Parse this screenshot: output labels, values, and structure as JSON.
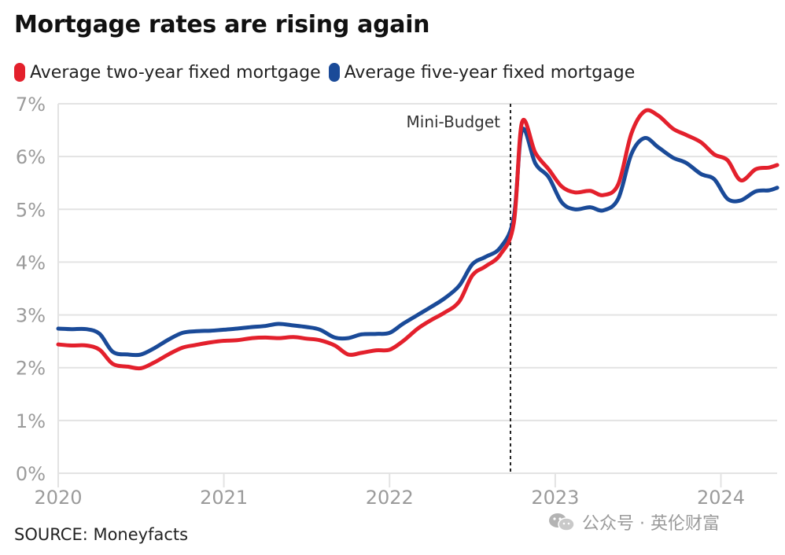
{
  "title": "Mortgage rates are rising again",
  "source": "SOURCE: Moneyfacts",
  "watermark": "公众号 · 英伦财富",
  "colors": {
    "two_year": "#e3202c",
    "five_year": "#1a4a98",
    "grid": "#e3e3e3",
    "axis_text": "#9b9b9b"
  },
  "chart_data": {
    "type": "line",
    "title": "Mortgage rates are rising again",
    "xlabel": "",
    "ylabel": "",
    "xlim": [
      2020,
      2024.34
    ],
    "ylim": [
      0,
      7
    ],
    "y_ticks": [
      "0%",
      "1%",
      "2%",
      "3%",
      "4%",
      "5%",
      "6%",
      "7%"
    ],
    "x_ticks": [
      "2020",
      "2021",
      "2022",
      "2023",
      "2024"
    ],
    "grid": true,
    "legend_position": "top-left",
    "annotations": [
      {
        "label": "Mini-Budget",
        "x": 2022.73,
        "style": "dashed-vertical-line"
      }
    ],
    "series": [
      {
        "name": "Average two-year fixed mortgage",
        "color": "#e3202c",
        "x": [
          2020,
          2020.08,
          2020.17,
          2020.25,
          2020.33,
          2020.42,
          2020.5,
          2020.58,
          2020.67,
          2020.75,
          2020.83,
          2020.92,
          2021,
          2021.08,
          2021.17,
          2021.25,
          2021.33,
          2021.42,
          2021.5,
          2021.58,
          2021.67,
          2021.75,
          2021.83,
          2021.92,
          2022,
          2022.08,
          2022.17,
          2022.25,
          2022.33,
          2022.42,
          2022.5,
          2022.58,
          2022.67,
          2022.75,
          2022.8,
          2022.88,
          2022.96,
          2023.04,
          2023.12,
          2023.21,
          2023.29,
          2023.38,
          2023.46,
          2023.54,
          2023.62,
          2023.71,
          2023.79,
          2023.88,
          2023.96,
          2024.04,
          2024.12,
          2024.21,
          2024.29,
          2024.34
        ],
        "y": [
          2.44,
          2.42,
          2.42,
          2.34,
          2.07,
          2.02,
          1.99,
          2.1,
          2.26,
          2.38,
          2.43,
          2.48,
          2.51,
          2.52,
          2.56,
          2.57,
          2.56,
          2.58,
          2.55,
          2.52,
          2.42,
          2.25,
          2.28,
          2.33,
          2.34,
          2.5,
          2.74,
          2.9,
          3.04,
          3.25,
          3.75,
          3.92,
          4.15,
          4.74,
          6.65,
          6.07,
          5.76,
          5.43,
          5.32,
          5.35,
          5.27,
          5.47,
          6.44,
          6.86,
          6.78,
          6.53,
          6.41,
          6.27,
          6.04,
          5.93,
          5.55,
          5.76,
          5.79,
          5.84
        ]
      },
      {
        "name": "Average five-year fixed mortgage",
        "color": "#1a4a98",
        "x": [
          2020,
          2020.08,
          2020.17,
          2020.25,
          2020.33,
          2020.42,
          2020.5,
          2020.58,
          2020.67,
          2020.75,
          2020.83,
          2020.92,
          2021,
          2021.08,
          2021.17,
          2021.25,
          2021.33,
          2021.42,
          2021.5,
          2021.58,
          2021.67,
          2021.75,
          2021.83,
          2021.92,
          2022,
          2022.08,
          2022.17,
          2022.25,
          2022.33,
          2022.42,
          2022.5,
          2022.58,
          2022.67,
          2022.75,
          2022.8,
          2022.88,
          2022.96,
          2023.04,
          2023.12,
          2023.21,
          2023.29,
          2023.38,
          2023.46,
          2023.54,
          2023.62,
          2023.71,
          2023.79,
          2023.88,
          2023.96,
          2024.04,
          2024.12,
          2024.21,
          2024.29,
          2024.34
        ],
        "y": [
          2.74,
          2.73,
          2.73,
          2.64,
          2.3,
          2.25,
          2.25,
          2.37,
          2.54,
          2.66,
          2.69,
          2.7,
          2.72,
          2.74,
          2.77,
          2.79,
          2.83,
          2.8,
          2.77,
          2.72,
          2.57,
          2.56,
          2.63,
          2.64,
          2.66,
          2.83,
          3.0,
          3.15,
          3.31,
          3.55,
          3.96,
          4.1,
          4.28,
          4.85,
          6.5,
          5.87,
          5.61,
          5.13,
          5.0,
          5.04,
          4.98,
          5.2,
          6.05,
          6.35,
          6.18,
          5.98,
          5.88,
          5.67,
          5.57,
          5.2,
          5.17,
          5.34,
          5.36,
          5.41
        ]
      }
    ]
  }
}
